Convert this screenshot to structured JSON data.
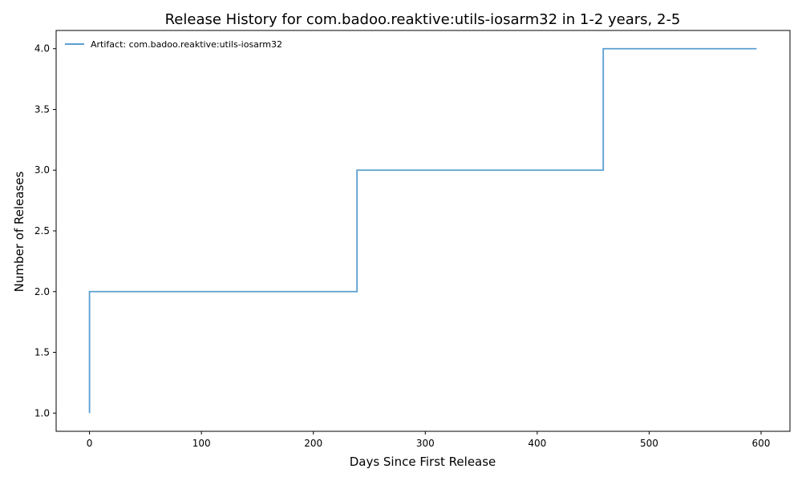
{
  "chart_data": {
    "type": "line",
    "step": true,
    "title": "Release History for com.badoo.reaktive:utils-iosarm32 in 1-2 years, 2-5",
    "xlabel": "Days Since First Release",
    "ylabel": "Number of Releases",
    "xlim": [
      -29.8,
      625.8
    ],
    "ylim": [
      0.85,
      4.15
    ],
    "xticks": [
      0,
      100,
      200,
      300,
      400,
      500,
      600
    ],
    "xtick_labels": [
      "0",
      "100",
      "200",
      "300",
      "400",
      "500",
      "600"
    ],
    "yticks": [
      1.0,
      1.5,
      2.0,
      2.5,
      3.0,
      3.5,
      4.0
    ],
    "ytick_labels": [
      "1.0",
      "1.5",
      "2.0",
      "2.5",
      "3.0",
      "3.5",
      "4.0"
    ],
    "grid": false,
    "legend_position": "top-left",
    "series": [
      {
        "name": "Artifact: com.badoo.reaktive:utils-iosarm32",
        "color": "#5b9fd0",
        "x": [
          0,
          0,
          239,
          459,
          596
        ],
        "y": [
          1,
          2,
          3,
          4,
          4
        ]
      }
    ]
  }
}
